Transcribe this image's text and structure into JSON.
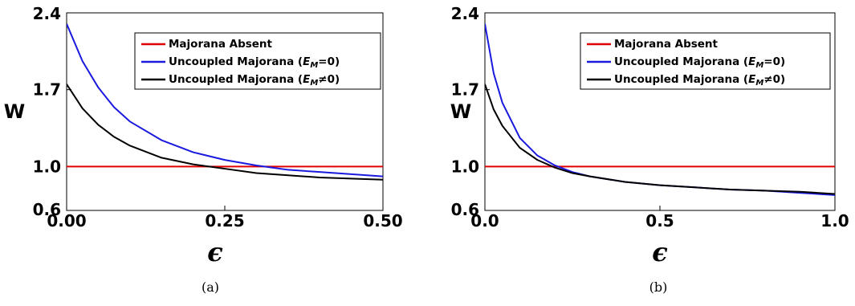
{
  "chart_data": [
    {
      "type": "line",
      "panel_label": "(a)",
      "ylabel": "W",
      "xlabel": "ϵ",
      "xlim": [
        0,
        0.5
      ],
      "ylim": [
        0.6,
        2.4
      ],
      "xticks": [
        "0.00",
        "0.25",
        "0.50"
      ],
      "yticks": [
        "0.6",
        "1.0",
        "1.7",
        "2.4"
      ],
      "legend_position": "top-right",
      "series": [
        {
          "name": "Majorana Absent",
          "color": "#e00000",
          "x": [
            0,
            0.5
          ],
          "y": [
            1.0,
            1.0
          ]
        },
        {
          "name": "Uncoupled Majorana (E_M=0)",
          "color": "#1a1adf",
          "x": [
            0,
            0.025,
            0.05,
            0.075,
            0.1,
            0.15,
            0.2,
            0.25,
            0.3,
            0.35,
            0.4,
            0.45,
            0.5
          ],
          "y": [
            2.3,
            1.96,
            1.72,
            1.54,
            1.41,
            1.24,
            1.13,
            1.06,
            1.01,
            0.97,
            0.95,
            0.93,
            0.91
          ]
        },
        {
          "name": "Uncoupled Majorana (E_M≠0)",
          "color": "#000000",
          "x": [
            0,
            0.025,
            0.05,
            0.075,
            0.1,
            0.15,
            0.2,
            0.25,
            0.3,
            0.35,
            0.4,
            0.45,
            0.5
          ],
          "y": [
            1.75,
            1.53,
            1.38,
            1.27,
            1.19,
            1.08,
            1.02,
            0.98,
            0.94,
            0.92,
            0.9,
            0.89,
            0.88
          ]
        }
      ]
    },
    {
      "type": "line",
      "panel_label": "(b)",
      "ylabel": "W",
      "xlabel": "ϵ",
      "xlim": [
        0,
        1.0
      ],
      "ylim": [
        0.6,
        2.4
      ],
      "xticks": [
        "0.0",
        "0.5",
        "1.0"
      ],
      "yticks": [
        "0.6",
        "1.0",
        "1.7",
        "2.4"
      ],
      "legend_position": "top-right",
      "series": [
        {
          "name": "Majorana Absent",
          "color": "#e00000",
          "x": [
            0,
            1.0
          ],
          "y": [
            1.0,
            1.0
          ]
        },
        {
          "name": "Uncoupled Majorana (E_M=0)",
          "color": "#1a1adf",
          "x": [
            0,
            0.025,
            0.05,
            0.1,
            0.15,
            0.2,
            0.25,
            0.3,
            0.4,
            0.5,
            0.6,
            0.7,
            0.8,
            0.9,
            1.0
          ],
          "y": [
            2.3,
            1.85,
            1.58,
            1.26,
            1.1,
            1.01,
            0.95,
            0.91,
            0.86,
            0.83,
            0.81,
            0.79,
            0.78,
            0.76,
            0.74
          ]
        },
        {
          "name": "Uncoupled Majorana (E_M≠0)",
          "color": "#000000",
          "x": [
            0,
            0.025,
            0.05,
            0.1,
            0.15,
            0.2,
            0.25,
            0.3,
            0.4,
            0.5,
            0.6,
            0.7,
            0.8,
            0.9,
            1.0
          ],
          "y": [
            1.75,
            1.52,
            1.37,
            1.17,
            1.06,
            0.99,
            0.94,
            0.91,
            0.86,
            0.83,
            0.81,
            0.79,
            0.78,
            0.77,
            0.75
          ]
        }
      ]
    }
  ],
  "legend_text": {
    "absent": "Majorana Absent",
    "uncoupled": "Uncoupled Majorana (",
    "em_E": "E",
    "em_M": "M",
    "eq_zero": "=0)",
    "neq_zero": "≠0)"
  }
}
